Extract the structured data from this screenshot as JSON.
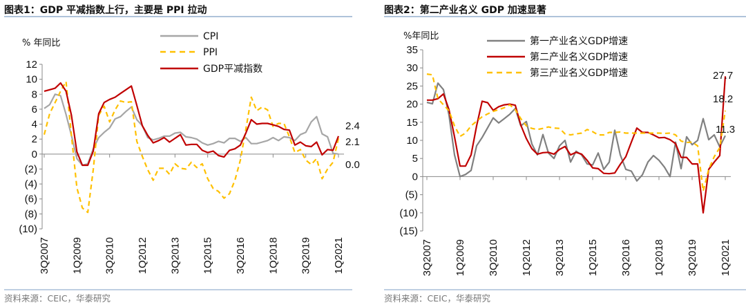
{
  "colors": {
    "cpi": "#a6a6a6",
    "ppi": "#ffc000",
    "gdp": "#c00000",
    "primary": "#808080",
    "secondary": "#c00000",
    "tertiary": "#ffc000",
    "rule": "#7f9fc4"
  },
  "chart_data": [
    {
      "type": "line",
      "title": "图表1：GDP 平减指数上行，主要是 PPI 拉动",
      "ylabel": "% 年同比",
      "ylim": [
        -10,
        12
      ],
      "yticks": [
        12,
        10,
        8,
        6,
        4,
        2,
        0,
        -2,
        -4,
        -6,
        -8,
        -10
      ],
      "ytick_labels": [
        "12",
        "10",
        "8",
        "6",
        "4",
        "2",
        "0",
        "(2)",
        "(4)",
        "(6)",
        "(8)",
        "(10)"
      ],
      "x_start": "3Q2007",
      "x_end": "1Q2021",
      "x_count": 55,
      "xtick_labels": [
        "3Q2007",
        "1Q2009",
        "3Q2010",
        "1Q2012",
        "3Q2013",
        "1Q2015",
        "3Q2016",
        "1Q2018",
        "3Q2019",
        "1Q2021"
      ],
      "legend_position": "top-center",
      "series": [
        {
          "name": "CPI",
          "style": "solid",
          "color_key": "cpi",
          "values": [
            6.1,
            6.6,
            8.0,
            7.8,
            5.3,
            2.5,
            -0.6,
            -1.5,
            -1.3,
            0.7,
            2.2,
            2.9,
            3.5,
            4.7,
            5.0,
            5.7,
            6.3,
            4.6,
            3.8,
            2.2,
            1.9,
            2.1,
            2.4,
            2.4,
            2.8,
            2.9,
            2.3,
            2.2,
            2.0,
            1.5,
            1.2,
            1.4,
            1.7,
            1.5,
            2.1,
            2.1,
            1.7,
            2.2,
            1.4,
            1.4,
            1.6,
            1.8,
            2.2,
            1.8,
            2.3,
            2.2,
            1.8,
            2.6,
            2.9,
            4.3,
            5.0,
            2.7,
            2.3,
            0.1,
            0.0
          ]
        },
        {
          "name": "PPI",
          "style": "dashed",
          "color_key": "ppi",
          "values": [
            2.6,
            5.4,
            6.9,
            8.4,
            9.7,
            2.5,
            -4.5,
            -7.2,
            -7.8,
            -2.1,
            5.2,
            6.4,
            4.3,
            5.9,
            7.1,
            6.9,
            7.0,
            1.7,
            -0.3,
            -2.1,
            -3.5,
            -1.9,
            -1.9,
            -2.7,
            -1.3,
            -1.9,
            -2.0,
            -1.1,
            -1.8,
            -1.3,
            -3.3,
            -4.6,
            -5.0,
            -5.9,
            -5.3,
            -3.5,
            -0.8,
            3.3,
            7.6,
            5.8,
            6.3,
            5.9,
            3.7,
            4.1,
            4.1,
            2.3,
            0.2,
            0.6,
            -0.8,
            -1.4,
            -0.6,
            -3.3,
            -2.0,
            -1.1,
            2.1
          ]
        },
        {
          "name": "GDP平减指数",
          "style": "solid",
          "color_key": "gdp",
          "values": [
            8.4,
            8.6,
            8.8,
            9.5,
            8.4,
            5.2,
            0.3,
            -1.5,
            -1.5,
            0.4,
            5.4,
            6.9,
            7.3,
            7.6,
            8.1,
            8.6,
            9.1,
            6.5,
            3.8,
            2.5,
            1.5,
            1.8,
            2.2,
            1.6,
            2.1,
            2.6,
            1.2,
            1.3,
            1.3,
            0.5,
            0.2,
            0.4,
            -0.2,
            -0.4,
            0.5,
            0.7,
            1.2,
            2.8,
            4.6,
            4.0,
            4.1,
            4.1,
            3.9,
            3.7,
            3.3,
            3.2,
            1.2,
            1.6,
            1.1,
            1.0,
            1.6,
            -0.1,
            0.6,
            0.5,
            2.4
          ]
        }
      ],
      "data_labels": [
        "2.4",
        "2.1",
        "0.0"
      ]
    },
    {
      "type": "line",
      "title": "图表2：第二产业名义 GDP 加速显著",
      "ylabel": "%年同比",
      "ylim": [
        -15,
        35
      ],
      "yticks": [
        35,
        30,
        25,
        20,
        15,
        10,
        5,
        0,
        -5,
        -10,
        -15
      ],
      "ytick_labels": [
        "35",
        "30",
        "25",
        "20",
        "15",
        "10",
        "5",
        "0",
        "(5)",
        "(10)",
        "(15)"
      ],
      "x_start": "3Q2007",
      "x_end": "1Q2021",
      "x_count": 55,
      "xtick_labels": [
        "3Q2007",
        "1Q2009",
        "3Q2010",
        "1Q2012",
        "3Q2013",
        "1Q2015",
        "3Q2016",
        "1Q2018",
        "3Q2019",
        "1Q2021"
      ],
      "legend_position": "top-center",
      "series": [
        {
          "name": "第一产业名义GDP增速",
          "style": "solid",
          "color_key": "primary",
          "values": [
            20.5,
            20.1,
            25.8,
            24.0,
            17.0,
            6.0,
            0.0,
            0.6,
            1.7,
            8.5,
            10.8,
            13.5,
            16.2,
            14.8,
            16.0,
            17.2,
            18.8,
            14.0,
            15.2,
            9.0,
            6.0,
            11.6,
            6.5,
            5.0,
            8.5,
            10.0,
            4.0,
            7.0,
            6.0,
            3.5,
            3.2,
            6.5,
            2.0,
            4.0,
            12.8,
            6.0,
            2.0,
            1.5,
            -1.2,
            0.5,
            4.0,
            5.8,
            4.5,
            2.6,
            0.0,
            9.5,
            2.2,
            11.0,
            8.8,
            10.0,
            16.0,
            10.2,
            11.5,
            8.2,
            11.3
          ]
        },
        {
          "name": "第二产业名义GDP增速",
          "style": "solid",
          "color_key": "secondary",
          "values": [
            21.1,
            21.1,
            21.5,
            22.8,
            18.5,
            11.0,
            2.9,
            2.9,
            6.0,
            14.0,
            20.8,
            20.4,
            18.3,
            19.3,
            19.8,
            20.0,
            19.7,
            14.2,
            10.5,
            7.7,
            6.2,
            6.6,
            6.7,
            6.2,
            7.5,
            8.3,
            6.0,
            6.7,
            6.2,
            4.5,
            2.4,
            2.2,
            0.9,
            0.8,
            1.0,
            3.4,
            5.5,
            9.5,
            13.4,
            12.2,
            12.2,
            11.5,
            10.7,
            10.8,
            10.2,
            9.1,
            5.3,
            5.3,
            3.5,
            3.5,
            -10.0,
            2.0,
            4.0,
            5.8,
            27.7
          ]
        },
        {
          "name": "第三产业名义GDP增速",
          "style": "dashed",
          "color_key": "tertiary",
          "values": [
            28.3,
            28.1,
            21.5,
            19.8,
            18.2,
            14.0,
            11.1,
            12.0,
            14.0,
            15.3,
            16.5,
            17.3,
            18.0,
            18.5,
            19.0,
            19.8,
            18.5,
            16.0,
            14.0,
            13.3,
            13.0,
            13.3,
            13.7,
            13.4,
            13.3,
            11.8,
            11.5,
            11.8,
            12.0,
            13.0,
            12.4,
            11.5,
            11.5,
            12.2,
            12.2,
            12.3,
            12.0,
            12.0,
            12.0,
            12.0,
            12.0,
            12.0,
            12.0,
            11.9,
            12.0,
            11.5,
            9.8,
            9.4,
            9.5,
            8.5,
            -4.0,
            2.0,
            5.5,
            8.0,
            18.2
          ]
        }
      ],
      "data_labels": [
        "27.7",
        "18.2",
        "11.3"
      ]
    }
  ],
  "source": [
    "资料来源：CEIC，华泰研究",
    "资料来源：CEIC，华泰研究"
  ]
}
